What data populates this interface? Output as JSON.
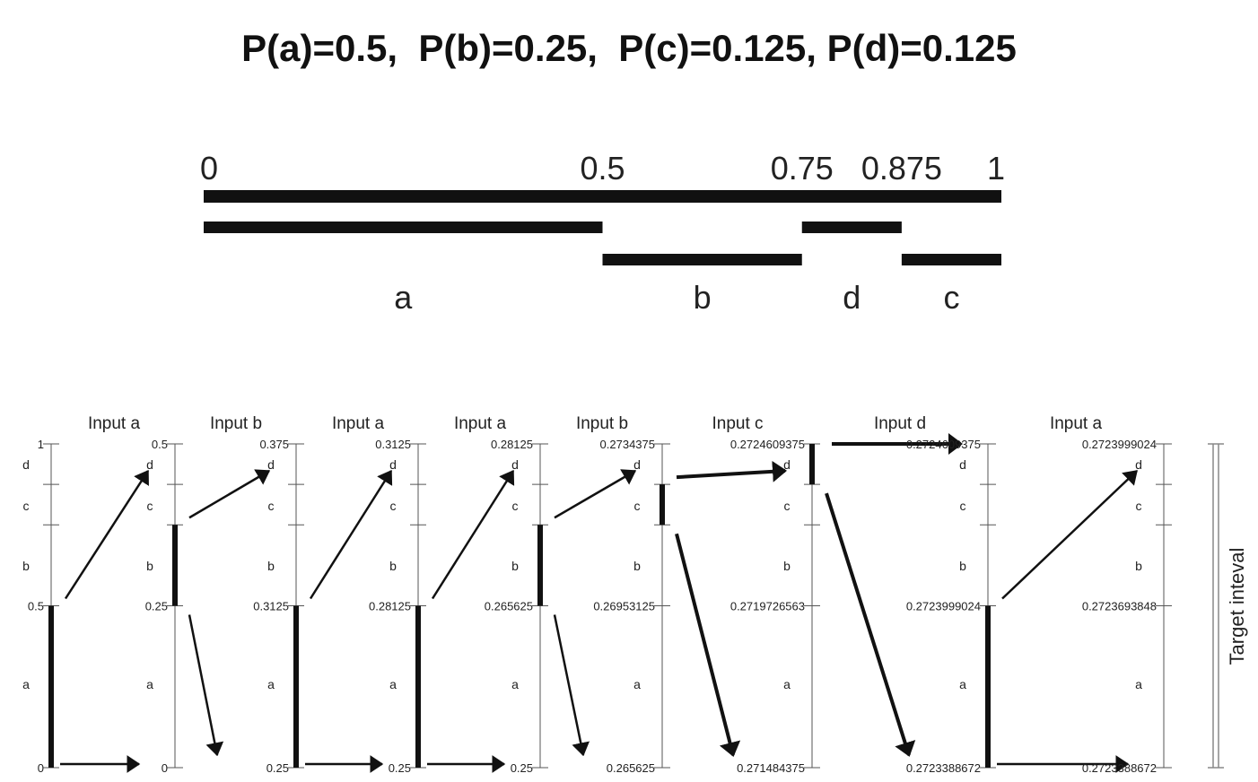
{
  "title": "P(a)=0.5,  P(b)=0.25,  P(c)=0.125, P(d)=0.125",
  "interval_axis": {
    "tick_labels": [
      {
        "value": 0,
        "label": "0"
      },
      {
        "value": 0.5,
        "label": "0.5"
      },
      {
        "value": 0.75,
        "label": "0.75"
      },
      {
        "value": 0.875,
        "label": "0.875"
      },
      {
        "value": 1,
        "label": "1"
      }
    ],
    "segments": [
      {
        "symbol": "a",
        "from": 0,
        "to": 0.5,
        "row": 1
      },
      {
        "symbol": "b",
        "from": 0.5,
        "to": 0.75,
        "row": 2
      },
      {
        "symbol": "d",
        "from": 0.75,
        "to": 0.875,
        "row": 1
      },
      {
        "symbol": "c",
        "from": 0.875,
        "to": 1,
        "row": 2
      }
    ]
  },
  "steps": [
    {
      "input": "Input a",
      "top": "1",
      "at_half": "0.5",
      "bottom": "0",
      "selected": "a"
    },
    {
      "input": "Input b",
      "top": "0.5",
      "at_half": "0.25",
      "bottom": "0",
      "selected": "b"
    },
    {
      "input": "Input a",
      "top": "0.375",
      "at_half": "0.3125",
      "bottom": "0.25",
      "selected": "a"
    },
    {
      "input": "Input a",
      "top": "0.3125",
      "at_half": "0.28125",
      "bottom": "0.25",
      "selected": "a"
    },
    {
      "input": "Input b",
      "top": "0.28125",
      "at_half": "0.265625",
      "bottom": "0.25",
      "selected": "b"
    },
    {
      "input": "Input c",
      "top": "0.2734375",
      "at_half": "0.26953125",
      "bottom": "0.265625",
      "selected": "c"
    },
    {
      "input": "Input d",
      "top": "0.2724609375",
      "at_half": "0.2719726563",
      "bottom": "0.271484375",
      "selected": "d"
    },
    {
      "input": "Input a",
      "top": "0.2724609375",
      "at_half": "0.2723999024",
      "bottom": "0.2723388672",
      "selected": "a"
    },
    {
      "input": "",
      "top": "0.2723999024",
      "at_half": "0.2723693848",
      "bottom": "0.2723388672",
      "selected": ""
    }
  ],
  "symbol_labels": {
    "d": "d",
    "c": "c",
    "b": "b",
    "a": "a"
  },
  "target_label": "Target inteval",
  "colors": {
    "ink": "#111111",
    "axis": "#555555",
    "bracket": "#888888"
  }
}
